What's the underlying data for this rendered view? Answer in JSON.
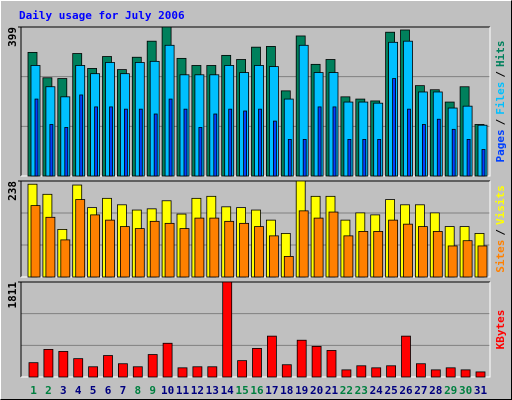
{
  "title": "Daily usage for July 2006",
  "chart_data": [
    {
      "type": "bar",
      "ylim": [
        0,
        399
      ],
      "yticks": [
        399
      ],
      "legend_separator": "/",
      "series": [
        {
          "name": "Hits",
          "color": "#00805c",
          "values": [
            331,
            263,
            261,
            328,
            288,
            320,
            285,
            318,
            361,
            399,
            315,
            296,
            296,
            323,
            312,
            345,
            347,
            228,
            375,
            299,
            312,
            212,
            206,
            201,
            385,
            391,
            242,
            231,
            198,
            239,
            138
          ]
        },
        {
          "name": "Files",
          "color": "#00c0ff",
          "values": [
            296,
            239,
            212,
            296,
            274,
            304,
            274,
            304,
            307,
            350,
            271,
            271,
            271,
            296,
            277,
            296,
            293,
            206,
            350,
            277,
            277,
            198,
            198,
            195,
            358,
            361,
            225,
            225,
            182,
            187,
            136
          ]
        },
        {
          "name": "Pages",
          "color": "#0040ff",
          "values": [
            206,
            138,
            130,
            217,
            185,
            185,
            179,
            179,
            166,
            206,
            179,
            130,
            166,
            179,
            174,
            179,
            147,
            98,
            98,
            185,
            185,
            98,
            98,
            98,
            261,
            179,
            138,
            152,
            125,
            98,
            71
          ]
        }
      ]
    },
    {
      "type": "bar",
      "ylim": [
        0,
        238
      ],
      "yticks": [
        238
      ],
      "legend_separator": "/",
      "series": [
        {
          "name": "Visits",
          "color": "#ffff00",
          "values": [
            230,
            205,
            118,
            228,
            172,
            195,
            179,
            166,
            169,
            189,
            156,
            195,
            200,
            174,
            172,
            166,
            141,
            108,
            238,
            200,
            200,
            141,
            159,
            154,
            192,
            179,
            179,
            159,
            125,
            125,
            108
          ]
        },
        {
          "name": "Sites",
          "color": "#ff8000",
          "values": [
            177,
            148,
            92,
            192,
            154,
            141,
            125,
            120,
            138,
            133,
            120,
            146,
            146,
            138,
            133,
            125,
            102,
            51,
            164,
            146,
            161,
            102,
            113,
            113,
            141,
            131,
            125,
            113,
            77,
            90,
            77
          ]
        }
      ]
    },
    {
      "type": "bar",
      "ylim": [
        0,
        1811
      ],
      "yticks": [
        1811
      ],
      "categories": [
        "1",
        "2",
        "3",
        "4",
        "5",
        "6",
        "7",
        "8",
        "9",
        "10",
        "11",
        "12",
        "13",
        "14",
        "15",
        "16",
        "17",
        "18",
        "19",
        "20",
        "21",
        "22",
        "23",
        "24",
        "25",
        "26",
        "27",
        "28",
        "29",
        "30",
        "31"
      ],
      "category_colors": [
        "#008040",
        "#008040",
        "#000080",
        "#000080",
        "#000080",
        "#000080",
        "#000080",
        "#008040",
        "#008040",
        "#000080",
        "#000080",
        "#000080",
        "#000080",
        "#000080",
        "#008040",
        "#008040",
        "#000080",
        "#000080",
        "#000080",
        "#000080",
        "#000080",
        "#008040",
        "#008040",
        "#000080",
        "#000080",
        "#000080",
        "#000080",
        "#000080",
        "#008040",
        "#008040",
        "#000080"
      ],
      "series": [
        {
          "name": "KBytes",
          "color": "#ff0000",
          "values": [
            273,
            526,
            487,
            350,
            195,
            409,
            253,
            195,
            428,
            643,
            175,
            195,
            195,
            1811,
            312,
            545,
            779,
            234,
            701,
            584,
            506,
            136,
            214,
            175,
            214,
            779,
            253,
            136,
            175,
            136,
            97
          ]
        }
      ]
    }
  ]
}
